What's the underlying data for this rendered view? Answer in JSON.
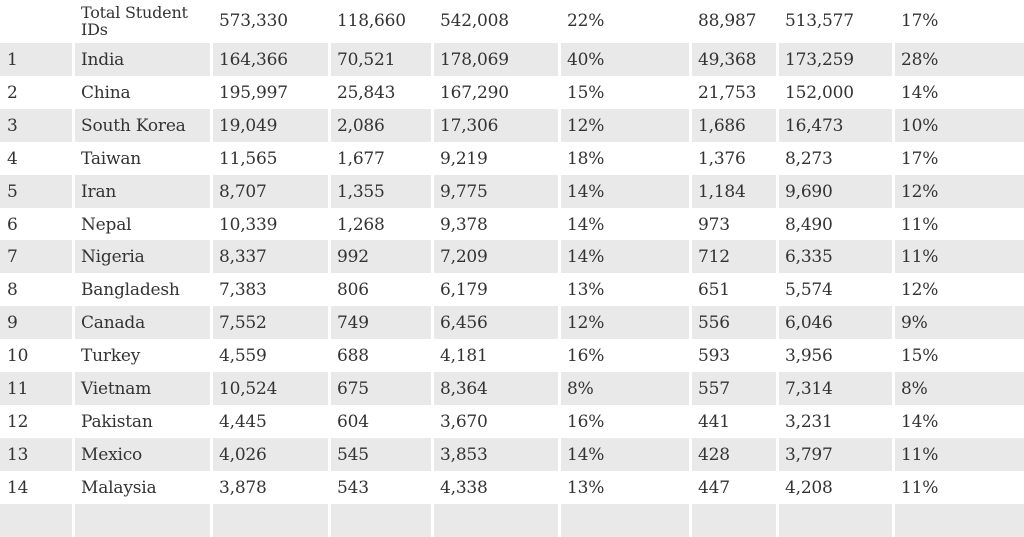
{
  "total_row": {
    "rank": "",
    "country": "Total Student IDs",
    "c2": "573,330",
    "c3": "118,660",
    "c4": "542,008",
    "c5": "22%",
    "c6": "88,987",
    "c7": "513,577",
    "c8": "17%"
  },
  "rows": [
    {
      "rank": "1",
      "country": "India",
      "c2": "164,366",
      "c3": "70,521",
      "c4": "178,069",
      "c5": "40%",
      "c6": "49,368",
      "c7": "173,259",
      "c8": "28%"
    },
    {
      "rank": "2",
      "country": "China",
      "c2": "195,997",
      "c3": "25,843",
      "c4": "167,290",
      "c5": "15%",
      "c6": "21,753",
      "c7": "152,000",
      "c8": "14%"
    },
    {
      "rank": "3",
      "country": "South Korea",
      "c2": "19,049",
      "c3": "2,086",
      "c4": "17,306",
      "c5": "12%",
      "c6": "1,686",
      "c7": "16,473",
      "c8": "10%"
    },
    {
      "rank": "4",
      "country": "Taiwan",
      "c2": "11,565",
      "c3": "1,677",
      "c4": "9,219",
      "c5": "18%",
      "c6": "1,376",
      "c7": "8,273",
      "c8": "17%"
    },
    {
      "rank": "5",
      "country": "Iran",
      "c2": "8,707",
      "c3": "1,355",
      "c4": "9,775",
      "c5": "14%",
      "c6": "1,184",
      "c7": "9,690",
      "c8": "12%"
    },
    {
      "rank": "6",
      "country": "Nepal",
      "c2": "10,339",
      "c3": "1,268",
      "c4": "9,378",
      "c5": "14%",
      "c6": "973",
      "c7": "8,490",
      "c8": "11%"
    },
    {
      "rank": "7",
      "country": "Nigeria",
      "c2": "8,337",
      "c3": "992",
      "c4": "7,209",
      "c5": "14%",
      "c6": "712",
      "c7": "6,335",
      "c8": "11%"
    },
    {
      "rank": "8",
      "country": "Bangladesh",
      "c2": "7,383",
      "c3": "806",
      "c4": "6,179",
      "c5": "13%",
      "c6": "651",
      "c7": "5,574",
      "c8": "12%"
    },
    {
      "rank": "9",
      "country": "Canada",
      "c2": "7,552",
      "c3": "749",
      "c4": "6,456",
      "c5": "12%",
      "c6": "556",
      "c7": "6,046",
      "c8": "9%"
    },
    {
      "rank": "10",
      "country": "Turkey",
      "c2": "4,559",
      "c3": "688",
      "c4": "4,181",
      "c5": "16%",
      "c6": "593",
      "c7": "3,956",
      "c8": "15%"
    },
    {
      "rank": "11",
      "country": "Vietnam",
      "c2": "10,524",
      "c3": "675",
      "c4": "8,364",
      "c5": "8%",
      "c6": "557",
      "c7": "7,314",
      "c8": "8%"
    },
    {
      "rank": "12",
      "country": "Pakistan",
      "c2": "4,445",
      "c3": "604",
      "c4": "3,670",
      "c5": "16%",
      "c6": "441",
      "c7": "3,231",
      "c8": "14%"
    },
    {
      "rank": "13",
      "country": "Mexico",
      "c2": "4,026",
      "c3": "545",
      "c4": "3,853",
      "c5": "14%",
      "c6": "428",
      "c7": "3,797",
      "c8": "11%"
    },
    {
      "rank": "14",
      "country": "Malaysia",
      "c2": "3,878",
      "c3": "543",
      "c4": "4,338",
      "c5": "13%",
      "c6": "447",
      "c7": "4,208",
      "c8": "11%"
    }
  ],
  "colors": {
    "row_shade": "#e9e9e9",
    "text": "#333333",
    "background": "#ffffff"
  }
}
